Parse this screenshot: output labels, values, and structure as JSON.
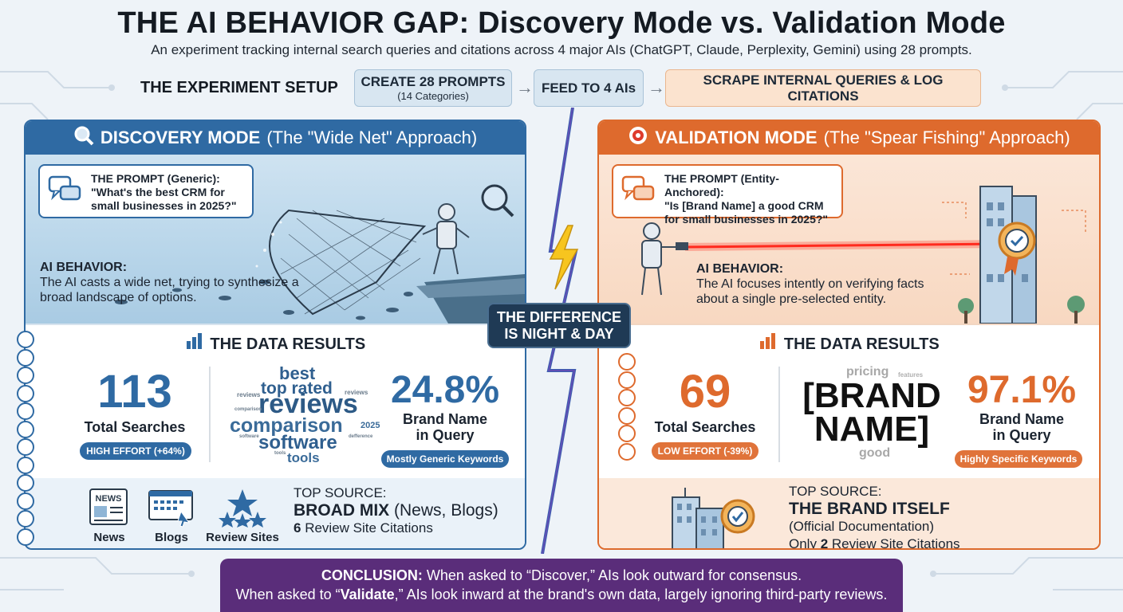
{
  "title": "THE AI BEHAVIOR GAP: Discovery Mode vs. Validation Mode",
  "subtitle": "An experiment tracking internal search queries and citations across 4 major AIs (ChatGPT, Claude, Perplexity, Gemini) using 28 prompts.",
  "setup": {
    "label": "THE EXPERIMENT SETUP",
    "step1_title": "CREATE 28 PROMPTS",
    "step1_sub": "(14 Categories)",
    "step2": "FEED TO 4 AIs",
    "step3": "SCRAPE INTERNAL QUERIES & LOG CITATIONS",
    "arrow": "→"
  },
  "difference": "THE DIFFERENCE IS NIGHT & DAY",
  "discovery": {
    "header_bold": "DISCOVERY MODE",
    "header_rest": "(The \"Wide Net\" Approach)",
    "prompt_label": "THE PROMPT (Generic):",
    "prompt_text": "\"What's the best CRM for small businesses in 2025?\"",
    "behavior_label": "AI BEHAVIOR:",
    "behavior_text": "The AI casts a wide net, trying to synthesize a broad landscape of options.",
    "results_title": "THE DATA RESULTS",
    "total_num": "113",
    "total_label": "Total Searches",
    "effort": "HIGH EFFORT (+64%)",
    "pct": "24.8%",
    "pct_label1": "Brand Name",
    "pct_label2": "in Query",
    "keywords": "Mostly Generic Keywords",
    "wordcloud": {
      "best": "best",
      "top_rated": "top rated",
      "reviews": "reviews",
      "comparison": "comparison",
      "software": "software",
      "tools": "tools",
      "year": "2025",
      "reviews_small": "reviews",
      "reviews_tiny": "reviews",
      "comparison_small": "comparison",
      "software_small": "software",
      "difference": "defference",
      "tools_small": "tools"
    },
    "sources": [
      "News",
      "Blogs",
      "Review Sites"
    ],
    "news_icon_text": "NEWS",
    "top_source_label": "TOP SOURCE:",
    "top_source_bold": "BROAD MIX",
    "top_source_rest": "(News, Blogs)",
    "citations_num": "6",
    "citations_rest": "Review Site Citations"
  },
  "validation": {
    "header_bold": "VALIDATION MODE",
    "header_rest": "(The \"Spear Fishing\" Approach)",
    "prompt_label": "THE PROMPT (Entity-Anchored):",
    "prompt_text": "\"Is [Brand Name] a good CRM for small businesses in 2025?\"",
    "behavior_label": "AI BEHAVIOR:",
    "behavior_text": "The AI focuses intently on verifying facts about a single pre-selected entity.",
    "results_title": "THE DATA RESULTS",
    "total_num": "69",
    "total_label": "Total Searches",
    "effort": "LOW EFFORT (-39%)",
    "brand_line1": "[BRAND",
    "brand_line2": "NAME]",
    "wc_pricing": "pricing",
    "wc_features": "features",
    "wc_good": "good",
    "pct": "97.1%",
    "pct_label1": "Brand Name",
    "pct_label2": "in Query",
    "keywords": "Highly Specific Keywords",
    "top_source_label": "TOP SOURCE:",
    "top_source_bold": "THE BRAND ITSELF",
    "top_source_rest": "(Official Documentation)",
    "citations_pre": "Only",
    "citations_num": "2",
    "citations_rest": "Review Site Citations"
  },
  "conclusion": {
    "label": "CONCLUSION:",
    "line1": "When asked to “Discover,” AIs look outward for consensus.",
    "line2_pre": "When asked to “",
    "line2_bold": "Validate",
    "line2_post": ",” AIs look inward at the brand's own data, largely ignoring third-party reviews."
  },
  "colors": {
    "discovery": "#2f6aa3",
    "validation": "#de6a2d",
    "conclusion": "#5a2d7a",
    "difference": "#1f3a55"
  }
}
